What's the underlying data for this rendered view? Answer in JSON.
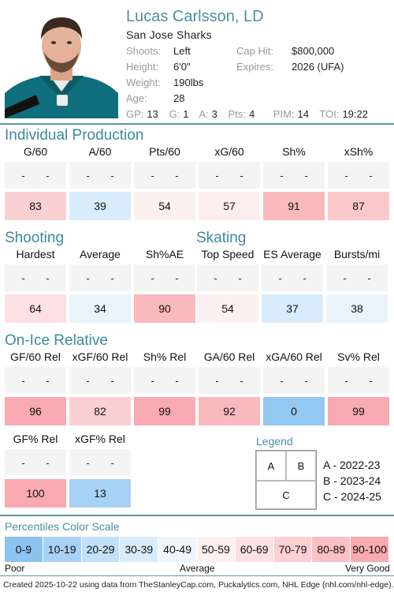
{
  "player": {
    "name": "Lucas Carlsson, LD",
    "team": "San Jose Sharks",
    "shoots_label": "Shoots:",
    "shoots": "Left",
    "height_label": "Height:",
    "height": "6'0\"",
    "weight_label": "Weight:",
    "weight": "190lbs",
    "age_label": "Age:",
    "age": "28",
    "caphit_label": "Cap Hit:",
    "caphit": "$800,000",
    "expires_label": "Expires:",
    "expires": "2026 (UFA)"
  },
  "season_stats": [
    {
      "label": "GP:",
      "value": "13"
    },
    {
      "label": "G:",
      "value": "1"
    },
    {
      "label": "A:",
      "value": "3"
    },
    {
      "label": "Pts:",
      "value": "4"
    },
    {
      "label": "PIM:",
      "value": "14"
    },
    {
      "label": "TOI:",
      "value": "19:22"
    }
  ],
  "sections": {
    "production": {
      "title": "Individual Production",
      "headers": [
        "G/60",
        "A/60",
        "Pts/60",
        "xG/60",
        "Sh%",
        "xSh%"
      ],
      "values": [
        "83",
        "39",
        "54",
        "57",
        "91",
        "87"
      ],
      "colors": [
        "#fbd0d3",
        "#d9ecfb",
        "#fdf0f0",
        "#fdeeee",
        "#fab9bd",
        "#fbc9cc"
      ]
    },
    "shooting": {
      "title": "Shooting",
      "headers": [
        "Hardest",
        "Average",
        "Sh%AE"
      ],
      "values": [
        "64",
        "34",
        "90"
      ],
      "colors": [
        "#fce0e2",
        "#e8f3fc",
        "#fab9bd"
      ]
    },
    "skating": {
      "title": "Skating",
      "headers": [
        "Top Speed",
        "ES Average",
        "Bursts/mi"
      ],
      "values": [
        "54",
        "37",
        "38"
      ],
      "colors": [
        "#fdf0f0",
        "#d9ecfb",
        "#e8f3fc"
      ]
    },
    "onice": {
      "title": "On-Ice Relative",
      "headers": [
        "GF/60 Rel",
        "xGF/60 Rel",
        "Sh% Rel",
        "GA/60 Rel",
        "xGA/60 Rel",
        "Sv% Rel"
      ],
      "values": [
        "96",
        "82",
        "99",
        "92",
        "0",
        "99"
      ],
      "colors": [
        "#f8aab0",
        "#fbd0d3",
        "#f8aab0",
        "#fab9bd",
        "#94c7f2",
        "#f8aab0"
      ],
      "headers2": [
        "GF% Rel",
        "xGF% Rel"
      ],
      "values2": [
        "100",
        "13"
      ],
      "colors2": [
        "#f8aab0",
        "#a8d2f5"
      ]
    }
  },
  "dash": "-",
  "legend": {
    "title": "Legend",
    "a": "A",
    "b": "B",
    "c": "C",
    "a_text": "A - 2022-23",
    "b_text": "B - 2023-24",
    "c_text": "C - 2024-25"
  },
  "scale": {
    "title": "Percentiles Color Scale",
    "bins": [
      "0-9",
      "10-19",
      "20-29",
      "30-39",
      "40-49",
      "50-59",
      "60-69",
      "70-79",
      "80-89",
      "90-100"
    ],
    "colors": [
      "#8cc3f1",
      "#a8d2f5",
      "#c2e0f8",
      "#d9ecfb",
      "#eef6fd",
      "#fdf0f0",
      "#fce0e2",
      "#fbd0d3",
      "#fbc0c4",
      "#f8aab0"
    ],
    "poor": "Poor",
    "average": "Average",
    "very_good": "Very Good"
  },
  "footer": "Created 2025-10-22 using data from TheStanleyCap.com, Puckalytics.com, NHL Edge (nhl.com/nhl-edge)."
}
